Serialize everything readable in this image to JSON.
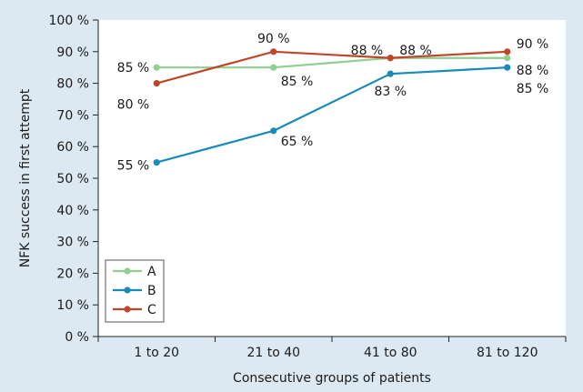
{
  "chart_data": {
    "type": "line",
    "categories": [
      "1 to 20",
      "21 to 40",
      "41 to 80",
      "81 to 120"
    ],
    "series": [
      {
        "name": "A",
        "values": [
          85,
          85,
          88,
          88
        ],
        "labels": [
          "85 %",
          "85 %",
          "88 %",
          "88 %"
        ],
        "color": "#8fcf8f"
      },
      {
        "name": "B",
        "values": [
          55,
          65,
          83,
          85
        ],
        "labels": [
          "55 %",
          "65 %",
          "83 %",
          "85 %"
        ],
        "color": "#1a8bb8"
      },
      {
        "name": "C",
        "values": [
          80,
          90,
          88,
          90
        ],
        "labels": [
          "80 %",
          "90 %",
          "88 %",
          "90 %"
        ],
        "color": "#c0462a"
      }
    ],
    "xlabel": "Consecutive groups of patients",
    "ylabel": "NFK success in first attempt",
    "ylim": [
      0,
      100
    ],
    "yticks": [
      0,
      10,
      20,
      30,
      40,
      50,
      60,
      70,
      80,
      90,
      100
    ],
    "ytick_labels": [
      "0 %",
      "10 %",
      "20 %",
      "30 %",
      "40 %",
      "50 %",
      "60 %",
      "70 %",
      "80 %",
      "90 %",
      "100 %"
    ],
    "grid": false,
    "legend_position": "bottom-left",
    "background_color": "#dce9f2",
    "plot_background_color": "#ffffff"
  }
}
